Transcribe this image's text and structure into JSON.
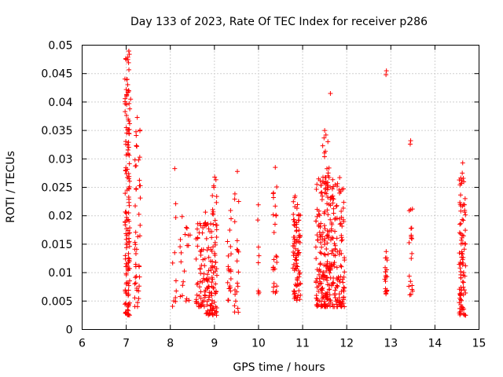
{
  "chart_data": {
    "type": "scatter",
    "title": "Day 133 of 2023, Rate Of TEC Index for receiver p286",
    "xlabel": "GPS time / hours",
    "ylabel": "ROTI / TECUs",
    "xlim": [
      6,
      15
    ],
    "ylim": [
      0,
      0.05
    ],
    "grid": true,
    "marker": "+",
    "color": "#ff0000",
    "x_ticks": [
      6,
      7,
      8,
      9,
      10,
      11,
      12,
      13,
      14,
      15
    ],
    "x_tick_labels": [
      "6",
      "7",
      "8",
      "9",
      "10",
      "11",
      "12",
      "13",
      "14",
      "15"
    ],
    "y_ticks": [
      0,
      0.005,
      0.01,
      0.015,
      0.02,
      0.025,
      0.03,
      0.035,
      0.04,
      0.045,
      0.05
    ],
    "y_tick_labels": [
      "0",
      "0.005",
      "0.01",
      "0.015",
      "0.02",
      "0.025",
      "0.03",
      "0.035",
      "0.04",
      "0.045",
      "0.05"
    ],
    "clusters": [
      {
        "x": [
          6.97,
          7.08
        ],
        "y": [
          0.0025,
          0.049
        ],
        "n": 140
      },
      {
        "x": [
          7.18,
          7.32
        ],
        "y": [
          0.004,
          0.038
        ],
        "n": 45
      },
      {
        "x": [
          8.05,
          8.15
        ],
        "y": [
          0.004,
          0.028
        ],
        "n": 10
      },
      {
        "x": [
          8.22,
          8.45
        ],
        "y": [
          0.005,
          0.021
        ],
        "n": 20
      },
      {
        "x": [
          8.58,
          8.78
        ],
        "y": [
          0.004,
          0.019
        ],
        "n": 50
      },
      {
        "x": [
          8.78,
          9.06
        ],
        "y": [
          0.0025,
          0.021
        ],
        "n": 110
      },
      {
        "x": [
          8.92,
          9.06
        ],
        "y": [
          0.02,
          0.028
        ],
        "n": 10
      },
      {
        "x": [
          9.28,
          9.38
        ],
        "y": [
          0.005,
          0.024
        ],
        "n": 20
      },
      {
        "x": [
          9.45,
          9.55
        ],
        "y": [
          0.003,
          0.028
        ],
        "n": 20
      },
      {
        "x": [
          9.98,
          10.03
        ],
        "y": [
          0.006,
          0.023
        ],
        "n": 8
      },
      {
        "x": [
          10.33,
          10.42
        ],
        "y": [
          0.006,
          0.029
        ],
        "n": 25
      },
      {
        "x": [
          10.78,
          10.95
        ],
        "y": [
          0.005,
          0.024
        ],
        "n": 90
      },
      {
        "x": [
          11.3,
          11.95
        ],
        "y": [
          0.004,
          0.027
        ],
        "n": 300
      },
      {
        "x": [
          11.45,
          11.6
        ],
        "y": [
          0.025,
          0.035
        ],
        "n": 20
      },
      {
        "x": [
          12.86,
          12.92
        ],
        "y": [
          0.006,
          0.014
        ],
        "n": 20
      },
      {
        "x": [
          13.4,
          13.5
        ],
        "y": [
          0.006,
          0.022
        ],
        "n": 20
      },
      {
        "x": [
          14.55,
          14.7
        ],
        "y": [
          0.0025,
          0.029
        ],
        "n": 90
      }
    ],
    "outliers": [
      {
        "x": 11.63,
        "y": 0.0415
      },
      {
        "x": 12.89,
        "y": 0.0448
      },
      {
        "x": 12.9,
        "y": 0.0455
      },
      {
        "x": 13.45,
        "y": 0.0332
      },
      {
        "x": 13.44,
        "y": 0.0326
      },
      {
        "x": 7.0,
        "y": 0.0475
      },
      {
        "x": 7.02,
        "y": 0.044
      },
      {
        "x": 7.0,
        "y": 0.0422
      },
      {
        "x": 7.1,
        "y": 0.0405
      },
      {
        "x": 7.08,
        "y": 0.0388
      },
      {
        "x": 7.25,
        "y": 0.0373
      },
      {
        "x": 7.24,
        "y": 0.0322
      },
      {
        "x": 7.28,
        "y": 0.0298
      },
      {
        "x": 11.5,
        "y": 0.035
      },
      {
        "x": 14.62,
        "y": 0.0275
      },
      {
        "x": 14.63,
        "y": 0.0293
      },
      {
        "x": 9.52,
        "y": 0.0278
      },
      {
        "x": 8.1,
        "y": 0.0283
      },
      {
        "x": 10.38,
        "y": 0.0285
      }
    ]
  }
}
